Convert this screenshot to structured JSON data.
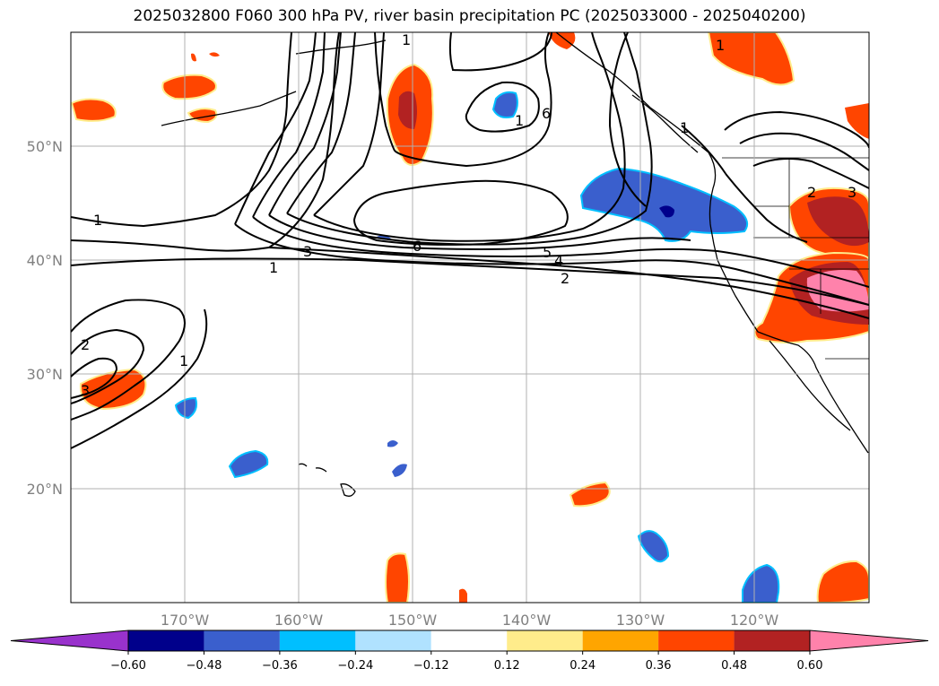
{
  "title": "2025032800 F060 300 hPa PV, river basin precipitation PC (2025033000 - 2025040200)",
  "lat_labels": [
    "50°N",
    "40°N",
    "30°N",
    "20°N"
  ],
  "lon_labels": [
    "170°W",
    "160°W",
    "150°W",
    "140°W",
    "130°W",
    "120°W"
  ],
  "colorbar": {
    "colors": [
      "#9932cc",
      "#00008b",
      "#3a5fcd",
      "#00bfff",
      "#b0e2ff",
      "#ffffff",
      "#ffec8b",
      "#ffa500",
      "#ff4500",
      "#b22222",
      "#ff82ab"
    ],
    "tick_labels": [
      "−0.60",
      "−0.48",
      "−0.36",
      "−0.24",
      "−0.12",
      "0.12",
      "0.24",
      "0.36",
      "0.48",
      "0.60"
    ]
  },
  "contour_labels": [
    "1",
    "1",
    "1",
    "1",
    "1",
    "1",
    "2",
    "2",
    "3",
    "3",
    "4",
    "5",
    "6",
    "6",
    "1",
    "2",
    "3"
  ],
  "colors": {
    "coast": "#000000",
    "grid": "#b0b0b0",
    "contour": "#000000"
  }
}
